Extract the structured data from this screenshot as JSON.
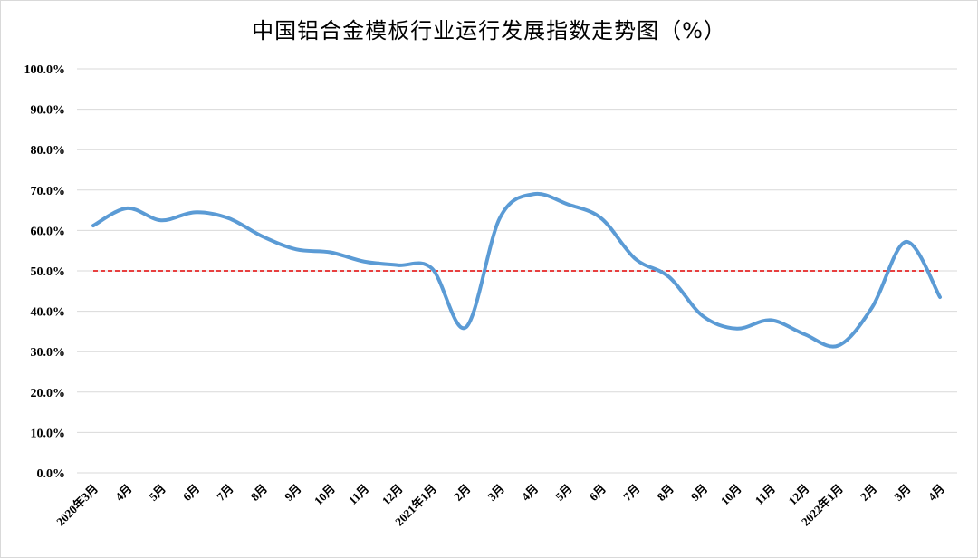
{
  "chart_data": {
    "type": "line",
    "title": "中国铝合金模板行业运行发展指数走势图（%）",
    "categories": [
      "2020年3月",
      "4月",
      "5月",
      "6月",
      "7月",
      "8月",
      "9月",
      "10月",
      "11月",
      "12月",
      "2021年1月",
      "2月",
      "3月",
      "4月",
      "5月",
      "6月",
      "7月",
      "8月",
      "9月",
      "10月",
      "11月",
      "12月",
      "2022年1月",
      "2月",
      "3月",
      "4月"
    ],
    "series": [
      {
        "values": [
          61.2,
          65.5,
          62.5,
          64.5,
          63.0,
          58.5,
          55.3,
          54.6,
          52.3,
          51.4,
          50.6,
          36.0,
          63.0,
          69.0,
          66.5,
          63.0,
          53.0,
          48.5,
          38.8,
          35.7,
          37.8,
          34.3,
          31.5,
          41.0,
          57.2,
          43.5
        ]
      }
    ],
    "reference_line": {
      "value": 50.0
    },
    "yticks": [
      "0.0%",
      "10.0%",
      "20.0%",
      "30.0%",
      "40.0%",
      "50.0%",
      "60.0%",
      "70.0%",
      "80.0%",
      "90.0%",
      "100.0%"
    ],
    "ylim": [
      0,
      100
    ],
    "grid": true,
    "colors": {
      "line": "#5b9bd5",
      "reference": "#e00000",
      "grid": "#d9d9d9"
    }
  }
}
